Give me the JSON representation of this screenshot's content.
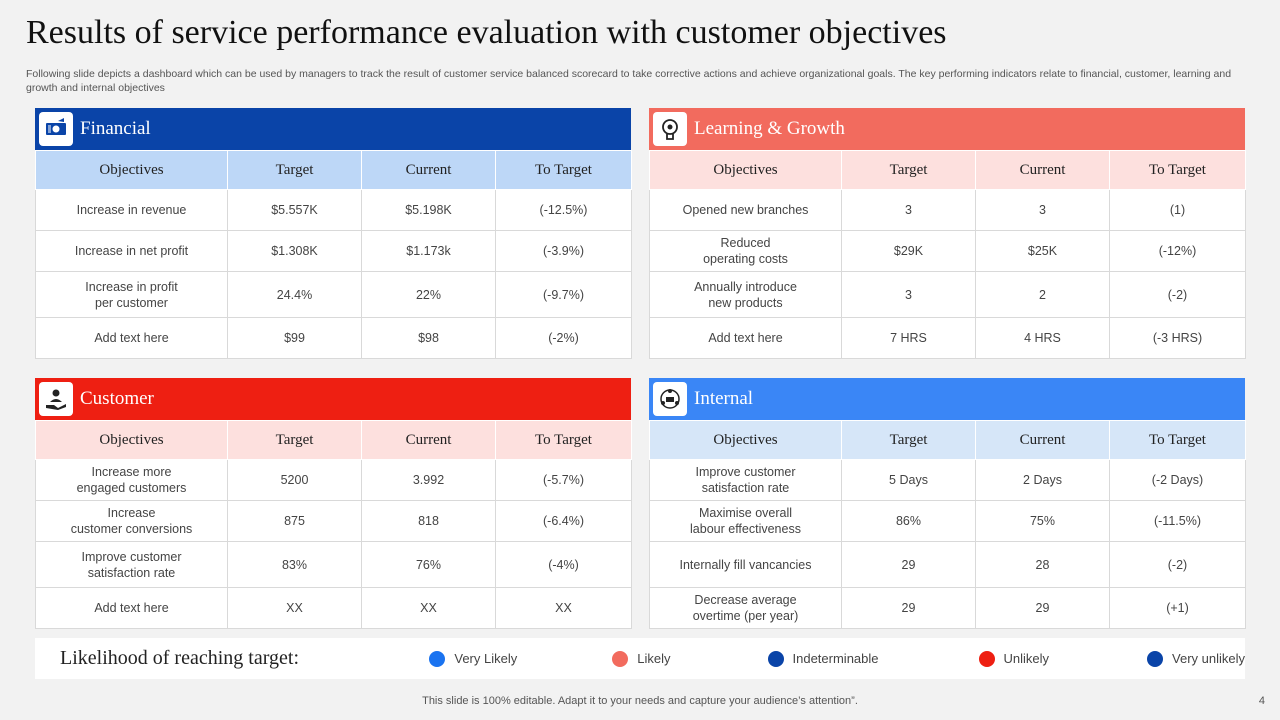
{
  "title": "Results of service performance evaluation with customer objectives",
  "subtitle": "Following slide depicts a dashboard which can be used by managers to track the result of customer service balanced scorecard to take corrective actions and achieve organizational goals. The key performing indicators relate to financial, customer, learning and growth and internal objectives",
  "colors": {
    "financial_header": "#0a44a8",
    "financial_cols": "#bdd7f7",
    "learning_header": "#f26b5e",
    "learning_cols": "#fde0de",
    "customer_header": "#ee1f12",
    "customer_cols": "#fde0de",
    "internal_header": "#3a86f6",
    "internal_cols": "#d6e6f8"
  },
  "columns": [
    "Objectives",
    "Target",
    "Current",
    "To Target"
  ],
  "panels": {
    "financial": {
      "title": "Financial",
      "icon": "money-icon",
      "rows": [
        [
          "Increase in revenue",
          "$5.557K",
          "$5.198K",
          "(-12.5%)"
        ],
        [
          "Increase in net profit",
          "$1.308K",
          "$1.173k",
          "(-3.9%)"
        ],
        [
          "Increase in profit\nper customer",
          "24.4%",
          "22%",
          "(-9.7%)"
        ],
        [
          "Add text here",
          "$99",
          "$98",
          "(-2%)"
        ]
      ]
    },
    "learning": {
      "title": "Learning & Growth",
      "icon": "brain-gear-icon",
      "rows": [
        [
          "Opened new branches",
          "3",
          "3",
          "(1)"
        ],
        [
          "Reduced\noperating costs",
          "$29K",
          "$25K",
          "(-12%)"
        ],
        [
          "Annually introduce\nnew products",
          "3",
          "2",
          "(-2)"
        ],
        [
          "Add text here",
          "7 HRS",
          "4 HRS",
          "(-3 HRS)"
        ]
      ]
    },
    "customer": {
      "title": "Customer",
      "icon": "customer-hand-icon",
      "rows": [
        [
          "Increase more\nengaged customers",
          "5200",
          "3.992",
          "(-5.7%)"
        ],
        [
          "Increase\ncustomer conversions",
          "875",
          "818",
          "(-6.4%)"
        ],
        [
          "Improve  customer\nsatisfaction rate",
          "83%",
          "76%",
          "(-4%)"
        ],
        [
          "Add text here",
          "XX",
          "XX",
          "XX"
        ]
      ]
    },
    "internal": {
      "title": "Internal",
      "icon": "team-network-icon",
      "rows": [
        [
          "Improve  customer\nsatisfaction rate",
          "5 Days",
          "2 Days",
          "(-2 Days)"
        ],
        [
          "Maximise overall\nlabour effectiveness",
          "86%",
          "75%",
          "(-11.5%)"
        ],
        [
          "Internally fill vancancies",
          "29",
          "28",
          "(-2)"
        ],
        [
          "Decrease average\novertime  (per year)",
          "29",
          "29",
          "(+1)"
        ]
      ]
    }
  },
  "legend": {
    "title": "Likelihood of reaching target:",
    "items": [
      {
        "label": "Very Likely",
        "color": "#1a73f0"
      },
      {
        "label": "Likely",
        "color": "#f26b5e"
      },
      {
        "label": "Indeterminable",
        "color": "#0a44a8"
      },
      {
        "label": "Unlikely",
        "color": "#ee1f12"
      },
      {
        "label": "Very unlikely",
        "color": "#0a44a8"
      }
    ]
  },
  "footer": "This slide is 100% editable. Adapt it to your needs and capture your audience’s attention”.",
  "page_number": "4"
}
